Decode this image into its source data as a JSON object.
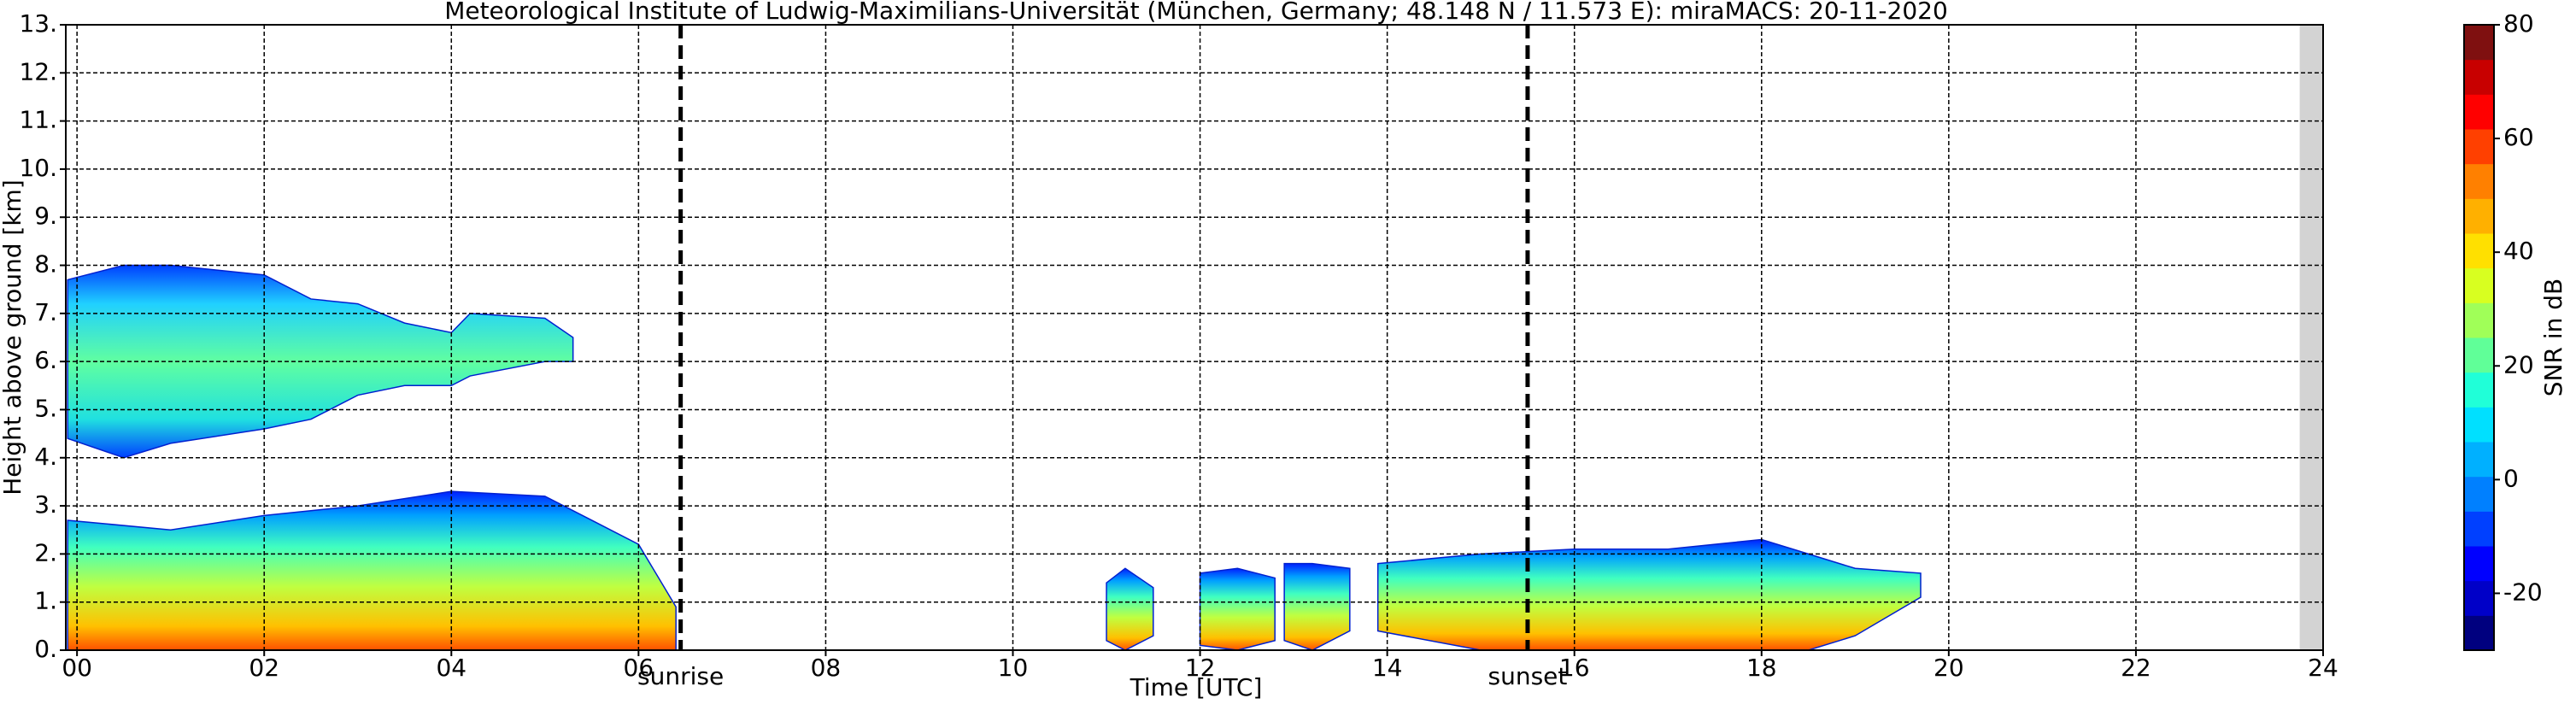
{
  "chart_data": {
    "type": "band",
    "title": "Meteorological Institute of Ludwig-Maximilians-Universität (München, Germany; 48.148 N / 11.573 E):    miraMACS: 20-11-2020",
    "x_label": "Time [UTC]",
    "y_label": "Height above ground [km]",
    "xlim": [
      -0.12,
      24
    ],
    "ylim": [
      0,
      13
    ],
    "xticks": [
      {
        "value": 0,
        "label": "00"
      },
      {
        "value": 2,
        "label": "02"
      },
      {
        "value": 4,
        "label": "04"
      },
      {
        "value": 6,
        "label": "06"
      },
      {
        "value": 8,
        "label": "08"
      },
      {
        "value": 10,
        "label": "10"
      },
      {
        "value": 12,
        "label": "12"
      },
      {
        "value": 14,
        "label": "14"
      },
      {
        "value": 16,
        "label": "16"
      },
      {
        "value": 18,
        "label": "18"
      },
      {
        "value": 20,
        "label": "20"
      },
      {
        "value": 22,
        "label": "22"
      },
      {
        "value": 24,
        "label": "24"
      }
    ],
    "yticks": [
      {
        "value": 0,
        "label": "0."
      },
      {
        "value": 1,
        "label": "1."
      },
      {
        "value": 2,
        "label": "2."
      },
      {
        "value": 3,
        "label": "3."
      },
      {
        "value": 4,
        "label": "4."
      },
      {
        "value": 5,
        "label": "5."
      },
      {
        "value": 6,
        "label": "6."
      },
      {
        "value": 7,
        "label": "7."
      },
      {
        "value": 8,
        "label": "8."
      },
      {
        "value": 9,
        "label": "9."
      },
      {
        "value": 10,
        "label": "10."
      },
      {
        "value": 11,
        "label": "11."
      },
      {
        "value": 12,
        "label": "12."
      },
      {
        "value": 13,
        "label": "13."
      }
    ],
    "grid": true,
    "missing_range": [
      23.75,
      24
    ],
    "bands": [
      {
        "gradient": "upper",
        "x": [
          -0.1,
          0.5,
          1,
          2,
          2.5,
          3,
          3.5,
          4,
          4.2,
          5,
          5.3
        ],
        "top": [
          7.7,
          8.0,
          8.0,
          7.8,
          7.3,
          7.2,
          6.8,
          6.6,
          7.0,
          6.9,
          6.5
        ],
        "base": [
          4.4,
          4.0,
          4.3,
          4.6,
          4.8,
          5.3,
          5.5,
          5.5,
          5.7,
          6.0,
          6.0
        ]
      },
      {
        "gradient": "lower",
        "x": [
          -0.1,
          1,
          2,
          3,
          4,
          5,
          5.5,
          6,
          6.4
        ],
        "top": [
          2.7,
          2.5,
          2.8,
          3.0,
          3.3,
          3.2,
          2.7,
          2.2,
          0.9
        ],
        "base": [
          0,
          0,
          0,
          0,
          0,
          0,
          0,
          0,
          0
        ]
      },
      {
        "gradient": "lower",
        "x": [
          11,
          11.2,
          11.5
        ],
        "top": [
          1.4,
          1.7,
          1.3
        ],
        "base": [
          0.2,
          0,
          0.3
        ]
      },
      {
        "gradient": "lower",
        "x": [
          12,
          12.4,
          12.8
        ],
        "top": [
          1.6,
          1.7,
          1.5
        ],
        "base": [
          0.1,
          0,
          0.2
        ]
      },
      {
        "gradient": "lower",
        "x": [
          12.9,
          13.2,
          13.6
        ],
        "top": [
          1.8,
          1.8,
          1.7
        ],
        "base": [
          0.2,
          0,
          0.4
        ]
      },
      {
        "gradient": "lower",
        "x": [
          13.9,
          15,
          16,
          17,
          18,
          18.5,
          19,
          19.7
        ],
        "top": [
          1.8,
          2.0,
          2.1,
          2.1,
          2.3,
          2.0,
          1.7,
          1.6
        ],
        "base": [
          0.4,
          0,
          0,
          0,
          0,
          0,
          0.3,
          1.1
        ]
      }
    ],
    "events": [
      {
        "value": 6.45,
        "label": "sunrise"
      },
      {
        "value": 15.5,
        "label": "sunset"
      }
    ],
    "colorbar": {
      "label": "SNR in dB",
      "zlim": [
        -30,
        80
      ],
      "zticks": [
        -20,
        0,
        20,
        40,
        60,
        80
      ],
      "colors": [
        "#00007f",
        "#0000c8",
        "#0000ff",
        "#0040ff",
        "#0080ff",
        "#00b0ff",
        "#00e0ff",
        "#20ffd8",
        "#60ff98",
        "#a0ff58",
        "#d8ff20",
        "#ffe000",
        "#ffb000",
        "#ff8000",
        "#ff4000",
        "#ff0000",
        "#c80000",
        "#7f1010"
      ]
    }
  }
}
